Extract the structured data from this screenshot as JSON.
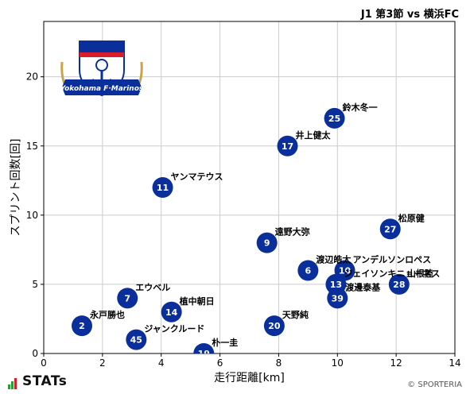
{
  "header": {
    "title": "J1 第3節 vs 横浜FC"
  },
  "footer": {
    "brand": "STATs",
    "copyright": "© SPORTERIA"
  },
  "badge": {
    "text": "Yokohama F·Marinos"
  },
  "colors": {
    "marker": "#0a2f9a",
    "grid": "#cccccc",
    "axis": "#000000"
  },
  "chart_data": {
    "type": "scatter",
    "title": "J1 第3節 vs 横浜FC",
    "xlabel": "走行距離[km]",
    "ylabel": "スプリント回数[回]",
    "xlim": [
      0,
      14
    ],
    "ylim": [
      0,
      24
    ],
    "xticks": [
      0,
      2,
      4,
      6,
      8,
      10,
      12,
      14
    ],
    "yticks": [
      0,
      5,
      10,
      15,
      20
    ],
    "grid": true,
    "points": [
      {
        "number": "25",
        "name": "鈴木冬一",
        "x": 9.9,
        "y": 17
      },
      {
        "number": "17",
        "name": "井上健太",
        "x": 8.3,
        "y": 15
      },
      {
        "number": "11",
        "name": "ヤンマテウス",
        "x": 4.05,
        "y": 12
      },
      {
        "number": "27",
        "name": "松原健",
        "x": 11.8,
        "y": 9
      },
      {
        "number": "9",
        "name": "遠野大弥",
        "x": 7.6,
        "y": 8
      },
      {
        "number": "6",
        "name": "渡辺皓太",
        "x": 9.0,
        "y": 6
      },
      {
        "number": "10",
        "name": "アンデルソンロペス",
        "x": 10.25,
        "y": 6
      },
      {
        "number": "13",
        "name": "ジェイソンキニョーネス",
        "x": 9.95,
        "y": 5
      },
      {
        "number": "28",
        "name": "山根陸",
        "x": 12.1,
        "y": 5
      },
      {
        "number": "39",
        "name": "渡邊泰基",
        "x": 10.0,
        "y": 4
      },
      {
        "number": "7",
        "name": "エウベル",
        "x": 2.85,
        "y": 4
      },
      {
        "number": "14",
        "name": "植中朝日",
        "x": 4.35,
        "y": 3
      },
      {
        "number": "2",
        "name": "永戸勝也",
        "x": 1.3,
        "y": 2
      },
      {
        "number": "20",
        "name": "天野純",
        "x": 7.85,
        "y": 2
      },
      {
        "number": "45",
        "name": "ジャンクルード",
        "x": 3.15,
        "y": 1
      },
      {
        "number": "19",
        "name": "朴一圭",
        "x": 5.45,
        "y": 0
      }
    ]
  }
}
